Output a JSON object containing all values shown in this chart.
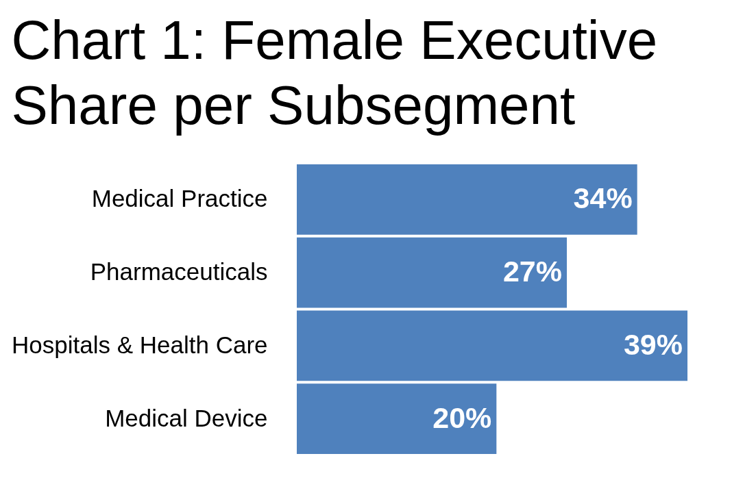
{
  "chart_data": {
    "type": "bar",
    "orientation": "horizontal",
    "title": "Chart 1: Female Executive Share per Subsegment",
    "categories": [
      "Medical Practice",
      "Pharmaceuticals",
      "Hospitals & Health Care",
      "Medical Device"
    ],
    "values": [
      34,
      27,
      39,
      20
    ],
    "color": "#4f81bd",
    "value_labels": [
      "34%",
      "27%",
      "39%",
      "20%"
    ]
  }
}
